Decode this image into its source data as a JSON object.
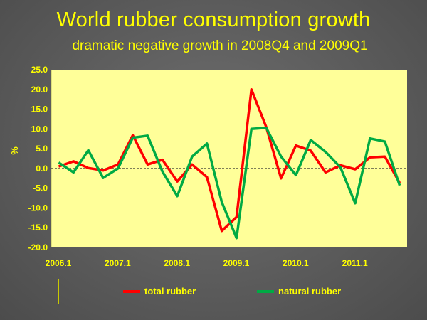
{
  "title": "World rubber consumption growth",
  "subtitle": "dramatic negative growth in 2008Q4 and 2009Q1",
  "chart_data": {
    "type": "line",
    "title": "World rubber consumption growth",
    "subtitle": "dramatic negative growth in 2008Q4 and 2009Q1",
    "xlabel": "",
    "ylabel": "%",
    "ylim": [
      -20,
      25
    ],
    "yticks": [
      "25.0",
      "20.0",
      "15.0",
      "10.0",
      "5.0",
      "0.0",
      "-5.0",
      "-10.0",
      "-15.0",
      "-20.0"
    ],
    "xtick_labels": [
      "2006.1",
      "2007.1",
      "2008.1",
      "2009.1",
      "2010.1",
      "2011.1"
    ],
    "x": [
      "2006.1",
      "2006.2",
      "2006.3",
      "2006.4",
      "2007.1",
      "2007.2",
      "2007.3",
      "2007.4",
      "2008.1",
      "2008.2",
      "2008.3",
      "2008.4",
      "2009.1",
      "2009.2",
      "2009.3",
      "2009.4",
      "2010.1",
      "2010.2",
      "2010.3",
      "2010.4",
      "2011.1",
      "2011.2",
      "2011.3",
      "2011.4"
    ],
    "series": [
      {
        "name": "total rubber",
        "color": "#ff0000",
        "values": [
          0.5,
          1.8,
          0.1,
          -0.5,
          1.0,
          8.4,
          1.0,
          2.2,
          -3.3,
          1.0,
          -2.2,
          -15.8,
          -12.3,
          20.0,
          10.5,
          -2.5,
          5.8,
          4.5,
          -1.0,
          0.8,
          -0.2,
          2.8,
          3.0,
          -3.7
        ]
      },
      {
        "name": "natural rubber",
        "color": "#00aa44",
        "values": [
          1.5,
          -1.0,
          4.6,
          -2.4,
          0.0,
          7.8,
          8.3,
          -0.8,
          -7.0,
          3.0,
          6.3,
          -8.5,
          -17.6,
          10.0,
          10.3,
          3.0,
          -1.7,
          7.2,
          4.2,
          0.3,
          -8.8,
          7.6,
          6.8,
          -4.3
        ]
      }
    ],
    "plot_background": "#ffff99",
    "zero_line": "dashed",
    "grid": false,
    "legend_position": "bottom"
  }
}
